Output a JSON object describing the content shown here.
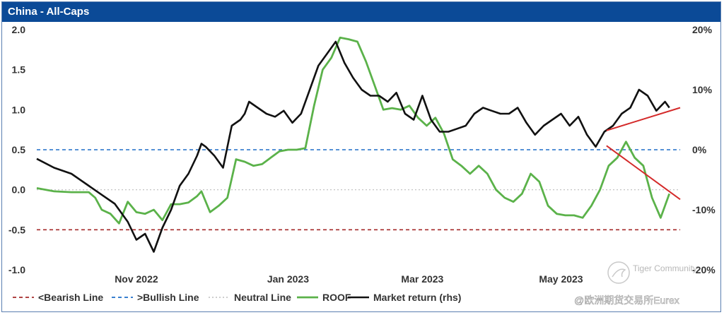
{
  "chart_data": {
    "type": "line",
    "title": "China - All-Caps",
    "x_ticks": [
      "Nov 2022",
      "Jan 2023",
      "Mar 2023",
      "May 2023"
    ],
    "y_left": {
      "ticks": [
        "2.0",
        "1.5",
        "1.0",
        "0.5",
        "0.0",
        "-0.5",
        "-1.0"
      ],
      "ylim": [
        -1.0,
        2.0
      ]
    },
    "y_right": {
      "ticks": [
        "20%",
        "10%",
        "0%",
        "-10%",
        "-20%"
      ],
      "ylim": [
        -20,
        20
      ]
    },
    "reference_lines": [
      {
        "name": "<Bearish Line",
        "value": -0.5,
        "color": "#a52a2a",
        "style": "dashed"
      },
      {
        "name": ">Bullish Line",
        "value": 0.5,
        "color": "#1f6fc9",
        "style": "dashed"
      },
      {
        "name": "Neutral Line",
        "value": 0.0,
        "color": "#bdbdbd",
        "style": "dotted"
      }
    ],
    "series": [
      {
        "name": "ROOF",
        "axis": "left",
        "color": "#5bb24a",
        "x": [
          "2022-09-16",
          "2022-09-24",
          "2022-10-02",
          "2022-10-10",
          "2022-10-13",
          "2022-10-16",
          "2022-10-20",
          "2022-10-24",
          "2022-10-28",
          "2022-11-01",
          "2022-11-05",
          "2022-11-09",
          "2022-11-13",
          "2022-11-17",
          "2022-11-21",
          "2022-11-25",
          "2022-11-29",
          "2022-12-01",
          "2022-12-05",
          "2022-12-09",
          "2022-12-13",
          "2022-12-17",
          "2022-12-21",
          "2022-12-25",
          "2022-12-29",
          "2023-01-02",
          "2023-01-06",
          "2023-01-10",
          "2023-01-14",
          "2023-01-18",
          "2023-01-22",
          "2023-01-26",
          "2023-01-30",
          "2023-02-03",
          "2023-02-07",
          "2023-02-11",
          "2023-02-15",
          "2023-02-19",
          "2023-02-23",
          "2023-02-27",
          "2023-03-03",
          "2023-03-07",
          "2023-03-11",
          "2023-03-15",
          "2023-03-19",
          "2023-03-23",
          "2023-03-27",
          "2023-03-31",
          "2023-04-04",
          "2023-04-08",
          "2023-04-12",
          "2023-04-16",
          "2023-04-20",
          "2023-04-24",
          "2023-04-28",
          "2023-05-02",
          "2023-05-06",
          "2023-05-10",
          "2023-05-14",
          "2023-05-18",
          "2023-05-22",
          "2023-05-26",
          "2023-05-30",
          "2023-06-03",
          "2023-06-07",
          "2023-06-11",
          "2023-06-15",
          "2023-06-19",
          "2023-06-23",
          "2023-06-27",
          "2023-07-01",
          "2023-07-05"
        ],
        "y": [
          0.02,
          -0.02,
          -0.03,
          -0.03,
          -0.1,
          -0.25,
          -0.3,
          -0.42,
          -0.15,
          -0.28,
          -0.3,
          -0.25,
          -0.38,
          -0.18,
          -0.18,
          -0.16,
          -0.08,
          -0.02,
          -0.28,
          -0.2,
          -0.1,
          0.38,
          0.35,
          0.3,
          0.32,
          0.4,
          0.48,
          0.5,
          0.5,
          0.52,
          1.05,
          1.5,
          1.65,
          1.9,
          1.88,
          1.85,
          1.6,
          1.3,
          1.0,
          1.02,
          1.0,
          1.05,
          0.9,
          0.8,
          0.9,
          0.7,
          0.38,
          0.3,
          0.2,
          0.3,
          0.2,
          0.0,
          -0.1,
          -0.15,
          -0.05,
          0.2,
          0.1,
          -0.2,
          -0.3,
          -0.32,
          -0.32,
          -0.35,
          -0.2,
          0.0,
          0.3,
          0.4,
          0.6,
          0.4,
          0.3,
          -0.1,
          -0.35,
          -0.05
        ]
      },
      {
        "name": "Market return (rhs)",
        "axis": "right",
        "color": "#111111",
        "x": [
          "2022-09-16",
          "2022-09-24",
          "2022-10-02",
          "2022-10-10",
          "2022-10-16",
          "2022-10-22",
          "2022-10-28",
          "2022-11-01",
          "2022-11-05",
          "2022-11-09",
          "2022-11-13",
          "2022-11-17",
          "2022-11-21",
          "2022-11-25",
          "2022-11-29",
          "2022-12-01",
          "2022-12-03",
          "2022-12-07",
          "2022-12-11",
          "2022-12-15",
          "2022-12-19",
          "2022-12-21",
          "2022-12-23",
          "2022-12-27",
          "2022-12-31",
          "2023-01-04",
          "2023-01-08",
          "2023-01-12",
          "2023-01-16",
          "2023-01-20",
          "2023-01-24",
          "2023-01-28",
          "2023-02-01",
          "2023-02-05",
          "2023-02-09",
          "2023-02-13",
          "2023-02-17",
          "2023-02-21",
          "2023-02-25",
          "2023-03-01",
          "2023-03-05",
          "2023-03-09",
          "2023-03-13",
          "2023-03-17",
          "2023-03-21",
          "2023-03-25",
          "2023-03-29",
          "2023-04-02",
          "2023-04-06",
          "2023-04-10",
          "2023-04-14",
          "2023-04-18",
          "2023-04-22",
          "2023-04-26",
          "2023-04-30",
          "2023-05-04",
          "2023-05-08",
          "2023-05-12",
          "2023-05-16",
          "2023-05-20",
          "2023-05-24",
          "2023-05-28",
          "2023-06-01",
          "2023-06-05",
          "2023-06-09",
          "2023-06-13",
          "2023-06-17",
          "2023-06-21",
          "2023-06-25",
          "2023-06-29",
          "2023-07-03",
          "2023-07-05"
        ],
        "y": [
          -1.5,
          -3.0,
          -4.0,
          -6.0,
          -7.5,
          -9.0,
          -12.0,
          -15.0,
          -14.0,
          -17.0,
          -13.0,
          -10.0,
          -6.0,
          -4.0,
          -1.0,
          1.0,
          0.5,
          -1.0,
          -3.0,
          4.0,
          5.0,
          6.0,
          8.0,
          7.0,
          6.0,
          5.5,
          6.5,
          4.5,
          6.0,
          10.0,
          14.0,
          16.0,
          18.0,
          14.5,
          12.0,
          10.0,
          9.0,
          9.0,
          8.0,
          9.5,
          6.0,
          5.0,
          9.0,
          5.0,
          3.0,
          3.0,
          3.5,
          4.0,
          6.0,
          7.0,
          6.5,
          6.0,
          6.0,
          7.0,
          4.5,
          2.5,
          4.0,
          5.0,
          6.0,
          4.0,
          5.5,
          2.5,
          0.5,
          3.0,
          4.0,
          6.0,
          7.0,
          10.0,
          9.0,
          6.5,
          8.0,
          7.0
        ]
      }
    ],
    "annotations": [
      {
        "type": "trend-line",
        "color": "#d42a2a",
        "from": [
          "2023-06-06",
          3.2
        ],
        "to": [
          "2023-07-10",
          7.0
        ],
        "axis": "right"
      },
      {
        "type": "trend-line",
        "color": "#d42a2a",
        "from": [
          "2023-06-06",
          0.55
        ],
        "to": [
          "2023-07-10",
          -0.12
        ],
        "axis": "left"
      }
    ],
    "legend": {
      "position": "bottom"
    },
    "grid": false
  },
  "watermark": {
    "line1": "Tiger Community",
    "line2": "@欧洲期货交易所Eurex"
  },
  "colors": {
    "title_bar": "#0b4a97",
    "roof": "#5bb24a",
    "market": "#111111",
    "bearish": "#a52a2a",
    "bullish": "#1f6fc9",
    "neutral": "#bdbdbd",
    "trend": "#d42a2a"
  }
}
